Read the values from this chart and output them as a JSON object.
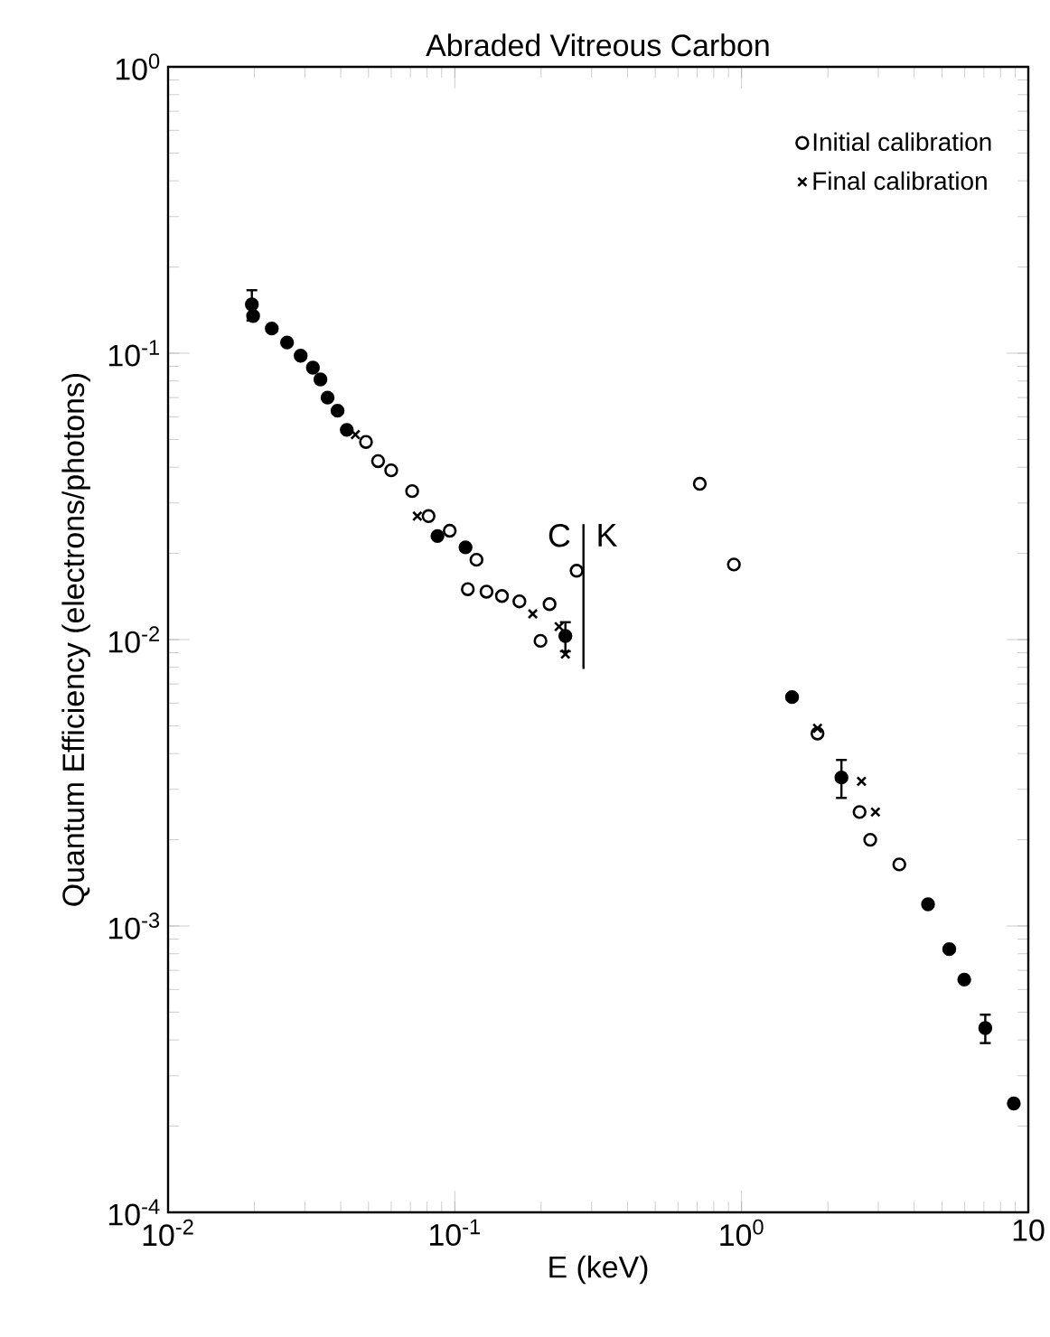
{
  "chart_data": {
    "type": "scatter",
    "title": "Abraded Vitreous Carbon",
    "xlabel": "E (keV)",
    "ylabel": "Quantum Efficiency (electrons/photons)",
    "log": "xy",
    "xlim": [
      0.01,
      10
    ],
    "ylim": [
      0.0001,
      1
    ],
    "xticks": [
      {
        "value": 0.01,
        "label": "10$^{-2}$"
      },
      {
        "value": 0.1,
        "label": "10$^{-1}$"
      },
      {
        "value": 1,
        "label": "10$^{0}$"
      },
      10
    ],
    "yticks": [
      {
        "value": 0.0001,
        "label": "10$^{-4}$"
      },
      {
        "value": 0.001,
        "label": "10$^{-3}$"
      },
      {
        "value": 0.01,
        "label": "10$^{-2}$"
      },
      {
        "value": 0.1,
        "label": "10$^{-1}$"
      },
      {
        "value": 1,
        "label": "10$^{0}$"
      }
    ],
    "grid": false,
    "legend": "top right",
    "series": [
      {
        "name": "Initial calibration",
        "color": "#000000",
        "marker": "circle",
        "x": [
          0.049,
          0.054,
          0.06,
          0.071,
          0.081,
          0.096,
          0.119,
          0.111,
          0.129,
          0.146,
          0.168,
          0.214,
          0.199,
          0.266,
          0.715,
          0.94,
          1.84,
          2.58,
          2.81,
          3.55
        ],
        "values": [
          0.049,
          0.042,
          0.039,
          0.033,
          0.027,
          0.024,
          0.019,
          0.015,
          0.0147,
          0.0142,
          0.0136,
          0.0133,
          0.0099,
          0.0174,
          0.035,
          0.0183,
          0.0047,
          0.0025,
          0.002,
          0.00164
        ]
      },
      {
        "name": "Final calibration",
        "color": "#000000",
        "marker": "cross",
        "x": [
          0.045,
          0.074,
          0.187,
          0.231,
          0.243,
          1.84,
          2.62,
          2.93
        ],
        "values": [
          0.052,
          0.027,
          0.0123,
          0.0111,
          0.0089,
          0.0049,
          0.0032,
          0.0025
        ]
      },
      {
        "color": "#000000",
        "marker": "circle",
        "x": [
          0.0196,
          0.0198,
          0.023,
          0.026,
          0.029,
          0.032,
          0.034,
          0.036,
          0.039,
          0.042,
          0.087,
          0.109,
          0.243,
          1.5,
          2.23,
          4.47,
          5.3,
          5.98,
          7.08,
          8.9
        ],
        "values": [
          0.148,
          0.135,
          0.122,
          0.109,
          0.098,
          0.089,
          0.081,
          0.07,
          0.063,
          0.054,
          0.023,
          0.021,
          0.0103,
          0.0063,
          0.0033,
          0.00119,
          0.00083,
          0.00065,
          0.00044,
          0.00024
        ],
        "errors": [
          0.018,
          null,
          null,
          null,
          null,
          null,
          null,
          null,
          null,
          null,
          null,
          null,
          0.0012,
          null,
          0.0005,
          null,
          null,
          null,
          5e-05,
          null
        ]
      },
      {
        "type": "line",
        "color": "#000000",
        "marker": "none",
        "x": [
          0.281,
          0.281
        ],
        "values": [
          0.0253,
          0.0079
        ]
      }
    ],
    "annotations": [
      "C",
      "K"
    ]
  }
}
